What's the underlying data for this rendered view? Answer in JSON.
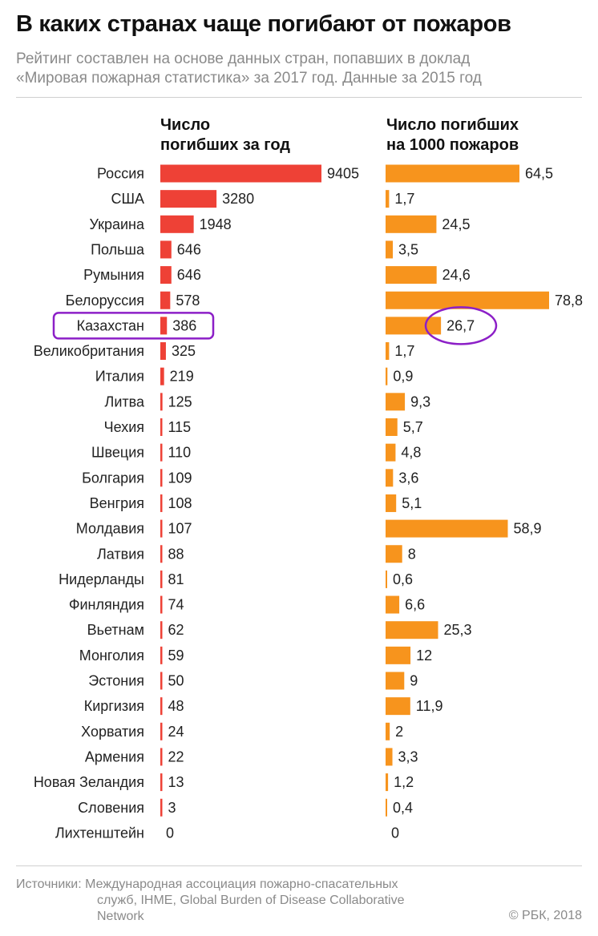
{
  "title": "В каких странах чаще погибают от пожаров",
  "subtitle": [
    "Рейтинг составлен на основе данных стран, попавших в доклад",
    "«Мировая пожарная статистика» за 2017 год. Данные за 2015 год"
  ],
  "sources": [
    "Источники: Международная ассоциация пожарно-спасательных",
    "служб, IHME, Global Burden of Disease Collaborative",
    "Network"
  ],
  "credit": "© РБК, 2018",
  "colors": {
    "deaths": "#ee4136",
    "per1000": "#f7941d",
    "highlight": "#8c1fc7"
  },
  "highlighted_category": "Казахстан",
  "chart_data": {
    "type": "bar",
    "orientation": "horizontal",
    "categories": [
      "Россия",
      "США",
      "Украина",
      "Польша",
      "Румыния",
      "Белоруссия",
      "Казахстан",
      "Великобритания",
      "Италия",
      "Литва",
      "Чехия",
      "Швеция",
      "Болгария",
      "Венгрия",
      "Молдавия",
      "Латвия",
      "Нидерланды",
      "Финляндия",
      "Вьетнам",
      "Монголия",
      "Эстония",
      "Киргизия",
      "Хорватия",
      "Армения",
      "Новая Зеландия",
      "Словения",
      "Лихтенштейн"
    ],
    "series": [
      {
        "name": [
          "Число",
          "погибших за год"
        ],
        "values": [
          9405,
          3280,
          1948,
          646,
          646,
          578,
          386,
          325,
          219,
          125,
          115,
          110,
          109,
          108,
          107,
          88,
          81,
          74,
          62,
          59,
          50,
          48,
          24,
          22,
          13,
          3,
          0
        ],
        "labels": [
          "9405",
          "3280",
          "1948",
          "646",
          "646",
          "578",
          "386",
          "325",
          "219",
          "125",
          "115",
          "110",
          "109",
          "108",
          "107",
          "88",
          "81",
          "74",
          "62",
          "59",
          "50",
          "48",
          "24",
          "22",
          "13",
          "3",
          "0"
        ]
      },
      {
        "name": [
          "Число погибших",
          "на 1000 пожаров"
        ],
        "values": [
          64.5,
          1.7,
          24.5,
          3.5,
          24.6,
          78.8,
          26.7,
          1.7,
          0.9,
          9.3,
          5.7,
          4.8,
          3.6,
          5.1,
          58.9,
          8,
          0.6,
          6.6,
          25.3,
          12,
          9,
          11.9,
          2,
          3.3,
          1.2,
          0.4,
          0
        ],
        "labels": [
          "64,5",
          "1,7",
          "24,5",
          "3,5",
          "24,6",
          "78,8",
          "26,7",
          "1,7",
          "0,9",
          "9,3",
          "5,7",
          "4,8",
          "3,6",
          "5,1",
          "58,9",
          "8",
          "0,6",
          "6,6",
          "25,3",
          "12",
          "9",
          "11,9",
          "2",
          "3,3",
          "1,2",
          "0,4",
          "0"
        ]
      }
    ]
  }
}
